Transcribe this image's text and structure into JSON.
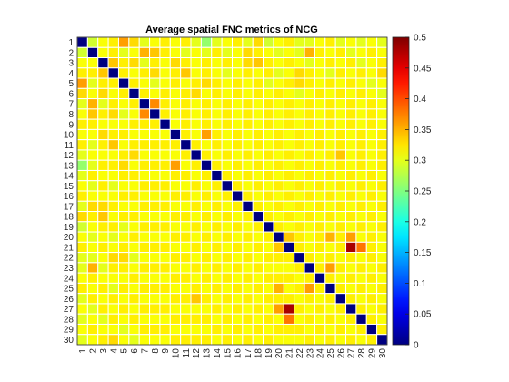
{
  "chart_data": {
    "type": "heatmap",
    "title": "Average spatial FNC metrics of NCG",
    "xlabel": "",
    "ylabel": "",
    "labels": [
      "1",
      "2",
      "3",
      "4",
      "5",
      "6",
      "7",
      "8",
      "9",
      "10",
      "11",
      "12",
      "13",
      "14",
      "15",
      "16",
      "17",
      "18",
      "19",
      "20",
      "21",
      "22",
      "23",
      "24",
      "25",
      "26",
      "27",
      "28",
      "29",
      "30"
    ],
    "x_tick_labels": [
      "1",
      "2",
      "3",
      "4",
      "5",
      "6",
      "7",
      "8",
      "9",
      "10",
      "11",
      "12",
      "13",
      "14",
      "15",
      "16",
      "17",
      "18",
      "19",
      "20",
      "21",
      "22",
      "23",
      "24",
      "25",
      "26",
      "27",
      "28",
      "29",
      "30"
    ],
    "y_tick_labels": [
      "1",
      "2",
      "3",
      "4",
      "5",
      "6",
      "7",
      "8",
      "9",
      "10",
      "11",
      "12",
      "13",
      "14",
      "15",
      "16",
      "17",
      "18",
      "19",
      "20",
      "21",
      "22",
      "23",
      "24",
      "25",
      "26",
      "27",
      "28",
      "29",
      "30"
    ],
    "colormap": "jet",
    "clim": [
      0,
      0.5
    ],
    "colorbar_ticks": [
      "0",
      "0.05",
      "0.1",
      "0.15",
      "0.2",
      "0.25",
      "0.3",
      "0.35",
      "0.4",
      "0.45",
      "0.5"
    ],
    "colorbar_tick_values": [
      0,
      0.05,
      0.1,
      0.15,
      0.2,
      0.25,
      0.3,
      0.35,
      0.4,
      0.45,
      0.5
    ],
    "grid": true,
    "grid_color": "#ffffff",
    "diagonal_value": 0,
    "values": [
      [
        0,
        0.29,
        0.31,
        0.32,
        0.36,
        0.33,
        0.3,
        0.31,
        0.32,
        0.31,
        0.32,
        0.3,
        0.26,
        0.3,
        0.31,
        0.32,
        0.3,
        0.33,
        0.29,
        0.31,
        0.32,
        0.3,
        0.3,
        0.31,
        0.32,
        0.3,
        0.31,
        0.3,
        0.31,
        0.3
      ],
      [
        0.29,
        0,
        0.31,
        0.32,
        0.3,
        0.31,
        0.35,
        0.34,
        0.32,
        0.31,
        0.3,
        0.31,
        0.3,
        0.32,
        0.3,
        0.31,
        0.33,
        0.32,
        0.31,
        0.3,
        0.31,
        0.3,
        0.35,
        0.32,
        0.31,
        0.32,
        0.3,
        0.31,
        0.32,
        0.31
      ],
      [
        0.31,
        0.31,
        0,
        0.34,
        0.32,
        0.33,
        0.3,
        0.32,
        0.31,
        0.33,
        0.32,
        0.31,
        0.32,
        0.31,
        0.32,
        0.31,
        0.33,
        0.34,
        0.32,
        0.31,
        0.32,
        0.31,
        0.3,
        0.31,
        0.32,
        0.31,
        0.32,
        0.3,
        0.31,
        0.32
      ],
      [
        0.32,
        0.32,
        0.34,
        0,
        0.32,
        0.31,
        0.32,
        0.33,
        0.31,
        0.32,
        0.34,
        0.31,
        0.32,
        0.31,
        0.3,
        0.31,
        0.32,
        0.31,
        0.32,
        0.3,
        0.31,
        0.33,
        0.32,
        0.31,
        0.3,
        0.32,
        0.31,
        0.32,
        0.31,
        0.33
      ],
      [
        0.36,
        0.3,
        0.32,
        0.32,
        0,
        0.32,
        0.31,
        0.3,
        0.31,
        0.32,
        0.31,
        0.32,
        0.33,
        0.32,
        0.31,
        0.32,
        0.31,
        0.32,
        0.3,
        0.31,
        0.32,
        0.33,
        0.32,
        0.31,
        0.32,
        0.31,
        0.32,
        0.31,
        0.3,
        0.31
      ],
      [
        0.33,
        0.31,
        0.33,
        0.31,
        0.32,
        0,
        0.32,
        0.31,
        0.32,
        0.31,
        0.32,
        0.33,
        0.31,
        0.32,
        0.31,
        0.32,
        0.31,
        0.32,
        0.31,
        0.32,
        0.31,
        0.3,
        0.31,
        0.32,
        0.31,
        0.32,
        0.31,
        0.32,
        0.31,
        0.3
      ],
      [
        0.3,
        0.35,
        0.3,
        0.32,
        0.31,
        0.32,
        0,
        0.37,
        0.32,
        0.31,
        0.32,
        0.31,
        0.32,
        0.31,
        0.32,
        0.31,
        0.32,
        0.31,
        0.32,
        0.31,
        0.32,
        0.31,
        0.32,
        0.31,
        0.32,
        0.31,
        0.32,
        0.31,
        0.32,
        0.31
      ],
      [
        0.31,
        0.34,
        0.32,
        0.33,
        0.3,
        0.31,
        0.37,
        0,
        0.32,
        0.31,
        0.32,
        0.31,
        0.32,
        0.31,
        0.32,
        0.31,
        0.32,
        0.31,
        0.32,
        0.31,
        0.32,
        0.31,
        0.32,
        0.31,
        0.32,
        0.31,
        0.32,
        0.31,
        0.32,
        0.31
      ],
      [
        0.32,
        0.32,
        0.31,
        0.31,
        0.31,
        0.32,
        0.32,
        0.32,
        0,
        0.31,
        0.32,
        0.31,
        0.32,
        0.31,
        0.32,
        0.31,
        0.32,
        0.31,
        0.32,
        0.31,
        0.32,
        0.31,
        0.32,
        0.31,
        0.32,
        0.31,
        0.32,
        0.31,
        0.32,
        0.31
      ],
      [
        0.31,
        0.31,
        0.33,
        0.32,
        0.32,
        0.31,
        0.31,
        0.31,
        0.31,
        0,
        0.32,
        0.31,
        0.36,
        0.32,
        0.31,
        0.32,
        0.31,
        0.32,
        0.31,
        0.32,
        0.31,
        0.32,
        0.31,
        0.32,
        0.31,
        0.32,
        0.31,
        0.32,
        0.31,
        0.32
      ],
      [
        0.32,
        0.3,
        0.32,
        0.34,
        0.31,
        0.32,
        0.32,
        0.32,
        0.32,
        0.32,
        0,
        0.32,
        0.31,
        0.32,
        0.31,
        0.32,
        0.31,
        0.32,
        0.31,
        0.32,
        0.31,
        0.32,
        0.31,
        0.32,
        0.31,
        0.32,
        0.31,
        0.32,
        0.31,
        0.32
      ],
      [
        0.3,
        0.31,
        0.31,
        0.31,
        0.32,
        0.33,
        0.31,
        0.31,
        0.31,
        0.31,
        0.32,
        0,
        0.32,
        0.31,
        0.32,
        0.31,
        0.32,
        0.31,
        0.32,
        0.31,
        0.32,
        0.31,
        0.32,
        0.31,
        0.32,
        0.34,
        0.31,
        0.32,
        0.31,
        0.32
      ],
      [
        0.26,
        0.3,
        0.32,
        0.32,
        0.33,
        0.31,
        0.32,
        0.32,
        0.32,
        0.36,
        0.31,
        0.32,
        0,
        0.32,
        0.31,
        0.32,
        0.31,
        0.32,
        0.31,
        0.32,
        0.31,
        0.32,
        0.31,
        0.32,
        0.31,
        0.32,
        0.31,
        0.32,
        0.31,
        0.32
      ],
      [
        0.3,
        0.32,
        0.31,
        0.31,
        0.32,
        0.32,
        0.31,
        0.31,
        0.31,
        0.32,
        0.32,
        0.31,
        0.32,
        0,
        0.32,
        0.31,
        0.32,
        0.31,
        0.32,
        0.31,
        0.32,
        0.31,
        0.32,
        0.31,
        0.32,
        0.31,
        0.32,
        0.31,
        0.32,
        0.31
      ],
      [
        0.31,
        0.3,
        0.32,
        0.3,
        0.31,
        0.31,
        0.32,
        0.32,
        0.32,
        0.31,
        0.31,
        0.32,
        0.31,
        0.32,
        0,
        0.32,
        0.31,
        0.32,
        0.31,
        0.32,
        0.31,
        0.32,
        0.31,
        0.32,
        0.31,
        0.32,
        0.31,
        0.32,
        0.31,
        0.32
      ],
      [
        0.32,
        0.31,
        0.31,
        0.31,
        0.32,
        0.32,
        0.31,
        0.31,
        0.31,
        0.32,
        0.32,
        0.31,
        0.32,
        0.31,
        0.32,
        0,
        0.32,
        0.31,
        0.32,
        0.31,
        0.32,
        0.31,
        0.32,
        0.31,
        0.32,
        0.31,
        0.32,
        0.31,
        0.32,
        0.31
      ],
      [
        0.3,
        0.33,
        0.33,
        0.32,
        0.31,
        0.31,
        0.32,
        0.32,
        0.32,
        0.31,
        0.31,
        0.32,
        0.31,
        0.32,
        0.31,
        0.32,
        0,
        0.32,
        0.31,
        0.32,
        0.31,
        0.32,
        0.31,
        0.32,
        0.31,
        0.32,
        0.31,
        0.32,
        0.31,
        0.32
      ],
      [
        0.33,
        0.32,
        0.34,
        0.31,
        0.32,
        0.32,
        0.31,
        0.31,
        0.31,
        0.32,
        0.32,
        0.31,
        0.32,
        0.31,
        0.32,
        0.31,
        0.32,
        0,
        0.32,
        0.31,
        0.32,
        0.31,
        0.32,
        0.31,
        0.32,
        0.31,
        0.32,
        0.31,
        0.32,
        0.31
      ],
      [
        0.29,
        0.31,
        0.32,
        0.32,
        0.3,
        0.31,
        0.32,
        0.32,
        0.32,
        0.31,
        0.31,
        0.32,
        0.31,
        0.32,
        0.31,
        0.32,
        0.31,
        0.32,
        0,
        0.32,
        0.31,
        0.32,
        0.31,
        0.32,
        0.31,
        0.32,
        0.31,
        0.32,
        0.31,
        0.32
      ],
      [
        0.31,
        0.3,
        0.31,
        0.3,
        0.31,
        0.32,
        0.31,
        0.31,
        0.31,
        0.32,
        0.32,
        0.31,
        0.32,
        0.31,
        0.32,
        0.31,
        0.32,
        0.31,
        0.32,
        0,
        0.34,
        0.32,
        0.31,
        0.32,
        0.35,
        0.32,
        0.36,
        0.31,
        0.32,
        0.31
      ],
      [
        0.32,
        0.31,
        0.32,
        0.31,
        0.32,
        0.31,
        0.32,
        0.32,
        0.32,
        0.31,
        0.31,
        0.32,
        0.31,
        0.32,
        0.31,
        0.32,
        0.31,
        0.32,
        0.31,
        0.34,
        0,
        0.32,
        0.31,
        0.32,
        0.31,
        0.32,
        0.48,
        0.38,
        0.32,
        0.31
      ],
      [
        0.3,
        0.3,
        0.31,
        0.33,
        0.33,
        0.3,
        0.31,
        0.31,
        0.31,
        0.32,
        0.32,
        0.31,
        0.32,
        0.31,
        0.32,
        0.31,
        0.32,
        0.31,
        0.32,
        0.32,
        0.32,
        0,
        0.32,
        0.31,
        0.32,
        0.31,
        0.32,
        0.31,
        0.32,
        0.31
      ],
      [
        0.3,
        0.35,
        0.3,
        0.32,
        0.32,
        0.31,
        0.32,
        0.32,
        0.32,
        0.31,
        0.31,
        0.32,
        0.31,
        0.32,
        0.31,
        0.32,
        0.31,
        0.32,
        0.31,
        0.31,
        0.31,
        0.32,
        0,
        0.32,
        0.36,
        0.32,
        0.31,
        0.32,
        0.31,
        0.32
      ],
      [
        0.31,
        0.32,
        0.31,
        0.31,
        0.31,
        0.32,
        0.31,
        0.31,
        0.31,
        0.32,
        0.32,
        0.31,
        0.32,
        0.31,
        0.32,
        0.31,
        0.32,
        0.31,
        0.32,
        0.32,
        0.32,
        0.31,
        0.32,
        0,
        0.32,
        0.31,
        0.32,
        0.31,
        0.32,
        0.31
      ],
      [
        0.32,
        0.31,
        0.32,
        0.3,
        0.32,
        0.31,
        0.32,
        0.32,
        0.32,
        0.31,
        0.31,
        0.32,
        0.31,
        0.32,
        0.31,
        0.32,
        0.31,
        0.32,
        0.31,
        0.35,
        0.31,
        0.32,
        0.36,
        0.32,
        0,
        0.32,
        0.31,
        0.32,
        0.31,
        0.32
      ],
      [
        0.3,
        0.32,
        0.31,
        0.32,
        0.31,
        0.32,
        0.31,
        0.31,
        0.31,
        0.32,
        0.32,
        0.34,
        0.32,
        0.31,
        0.32,
        0.31,
        0.32,
        0.31,
        0.32,
        0.32,
        0.32,
        0.31,
        0.32,
        0.31,
        0.32,
        0,
        0.32,
        0.31,
        0.32,
        0.31
      ],
      [
        0.31,
        0.3,
        0.32,
        0.31,
        0.32,
        0.31,
        0.32,
        0.32,
        0.32,
        0.31,
        0.31,
        0.31,
        0.31,
        0.32,
        0.31,
        0.32,
        0.31,
        0.32,
        0.31,
        0.36,
        0.48,
        0.32,
        0.31,
        0.32,
        0.31,
        0.32,
        0,
        0.32,
        0.31,
        0.32
      ],
      [
        0.3,
        0.31,
        0.3,
        0.32,
        0.31,
        0.32,
        0.31,
        0.31,
        0.31,
        0.32,
        0.32,
        0.32,
        0.32,
        0.31,
        0.32,
        0.31,
        0.32,
        0.31,
        0.32,
        0.31,
        0.38,
        0.31,
        0.32,
        0.31,
        0.32,
        0.31,
        0.32,
        0,
        0.32,
        0.31
      ],
      [
        0.31,
        0.32,
        0.31,
        0.31,
        0.3,
        0.31,
        0.32,
        0.32,
        0.32,
        0.31,
        0.31,
        0.31,
        0.31,
        0.32,
        0.31,
        0.32,
        0.31,
        0.32,
        0.31,
        0.32,
        0.32,
        0.32,
        0.31,
        0.32,
        0.31,
        0.32,
        0.31,
        0.32,
        0,
        0.32
      ],
      [
        0.3,
        0.31,
        0.32,
        0.33,
        0.31,
        0.3,
        0.31,
        0.31,
        0.31,
        0.32,
        0.32,
        0.32,
        0.32,
        0.31,
        0.32,
        0.31,
        0.32,
        0.31,
        0.32,
        0.31,
        0.31,
        0.31,
        0.32,
        0.31,
        0.32,
        0.31,
        0.32,
        0.31,
        0.32,
        0
      ]
    ]
  }
}
